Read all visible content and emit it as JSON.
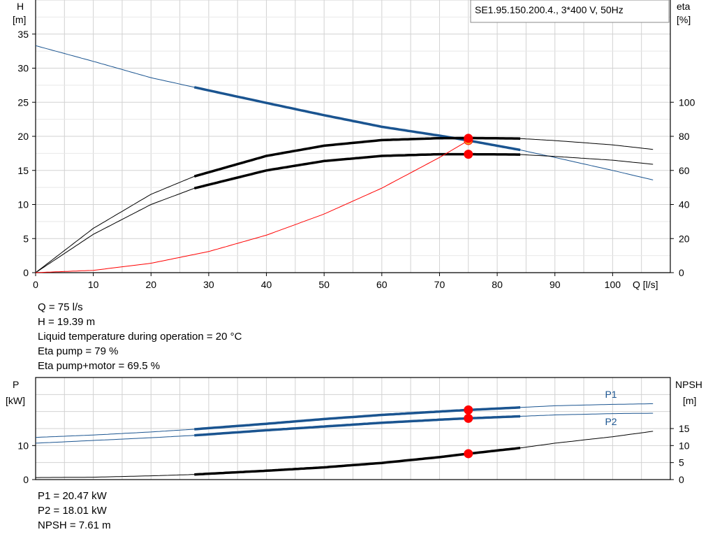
{
  "title": "SE1.95.150.200.4., 3*400 V, 50Hz",
  "colors": {
    "blue": "#1a5490",
    "black": "#000000",
    "red": "#ff0000",
    "grid": "#d2d2d2",
    "orange": "#f5a623"
  },
  "chart_data": [
    {
      "type": "line",
      "name": "pump-curve",
      "xlabel": "Q [l/s]",
      "ylabel_left": [
        "H",
        "[m]"
      ],
      "ylabel_right": [
        "eta",
        "[%]"
      ],
      "xlim": [
        0,
        110
      ],
      "ylim_left": [
        0,
        40
      ],
      "ylim_right": [
        0,
        160
      ],
      "x_ticks": [
        0,
        10,
        20,
        30,
        40,
        50,
        60,
        70,
        80,
        90,
        100
      ],
      "y_ticks_left": [
        0,
        5,
        10,
        15,
        20,
        25,
        30,
        35
      ],
      "y_ticks_right": [
        0,
        20,
        40,
        60,
        80,
        100
      ],
      "grid": true,
      "series": [
        {
          "key": "H",
          "axis": "left",
          "color": "#1a5490",
          "x": [
            0,
            10,
            20,
            27.5,
            40,
            50,
            60,
            70,
            75,
            84,
            90,
            100,
            107
          ],
          "y": [
            33.3,
            31.0,
            28.6,
            27.2,
            24.9,
            23.1,
            21.4,
            20.1,
            19.39,
            18.0,
            16.9,
            15.0,
            13.6
          ],
          "bold_range": [
            27.5,
            84
          ]
        },
        {
          "key": "eta_pump",
          "axis": "right",
          "color": "#000000",
          "x": [
            0,
            10,
            20,
            27.5,
            40,
            50,
            60,
            70,
            75,
            84,
            90,
            100,
            107
          ],
          "y": [
            0,
            26,
            46,
            56.5,
            68.5,
            74.5,
            77.8,
            78.9,
            79.0,
            78.7,
            77.5,
            75,
            72.3
          ],
          "bold_range": [
            27.5,
            84
          ]
        },
        {
          "key": "eta_pump_motor",
          "axis": "right",
          "color": "#000000",
          "x": [
            0,
            10,
            20,
            27.5,
            40,
            50,
            60,
            70,
            75,
            84,
            90,
            100,
            107
          ],
          "y": [
            0,
            22.5,
            40,
            49.5,
            60,
            65.5,
            68.5,
            69.5,
            69.5,
            69.3,
            68.2,
            66,
            63.6
          ],
          "bold_range": [
            27.5,
            84
          ]
        },
        {
          "key": "system",
          "axis": "left",
          "color": "#ff0000",
          "x": [
            0,
            10,
            20,
            30,
            40,
            50,
            60,
            70,
            75
          ],
          "y": [
            0,
            0.34,
            1.38,
            3.1,
            5.5,
            8.6,
            12.4,
            16.9,
            19.39
          ]
        }
      ],
      "points": [
        {
          "x": 75,
          "y": 19.39,
          "axis": "left",
          "color": "#f5a623"
        },
        {
          "x": 75,
          "y": 19.7,
          "axis": "left",
          "color": "#ff0000"
        },
        {
          "x": 75,
          "y": 69.5,
          "axis": "right",
          "color": "#ff0000"
        }
      ]
    },
    {
      "type": "line",
      "name": "power-curve",
      "ylabel_left": [
        "P",
        "[kW]"
      ],
      "ylabel_right": [
        "NPSH",
        "[m]"
      ],
      "xlim": [
        0,
        110
      ],
      "ylim_left": [
        0,
        30
      ],
      "ylim_right": [
        0,
        30
      ],
      "y_ticks_left": [
        0,
        10
      ],
      "y_ticks_right": [
        0,
        5,
        10,
        15
      ],
      "grid": true,
      "series": [
        {
          "key": "P1",
          "axis": "left",
          "color": "#1a5490",
          "label": "P1",
          "x": [
            0,
            10,
            20,
            27.5,
            40,
            50,
            60,
            70,
            75,
            84,
            90,
            100,
            107
          ],
          "y": [
            12.4,
            13.1,
            14.0,
            14.8,
            16.4,
            17.8,
            19.0,
            20.0,
            20.47,
            21.2,
            21.7,
            22.1,
            22.3
          ],
          "bold_range": [
            27.5,
            84
          ]
        },
        {
          "key": "P2",
          "axis": "left",
          "color": "#1a5490",
          "label": "P2",
          "x": [
            0,
            10,
            20,
            27.5,
            40,
            50,
            60,
            70,
            75,
            84,
            90,
            100,
            107
          ],
          "y": [
            10.7,
            11.5,
            12.3,
            13.0,
            14.5,
            15.6,
            16.7,
            17.6,
            18.01,
            18.6,
            19.0,
            19.4,
            19.5
          ],
          "bold_range": [
            27.5,
            84
          ]
        },
        {
          "key": "NPSH",
          "axis": "right",
          "color": "#000000",
          "x": [
            0,
            10,
            20,
            27.5,
            40,
            50,
            60,
            70,
            75,
            84,
            90,
            100,
            107
          ],
          "y": [
            0.6,
            0.7,
            1.1,
            1.5,
            2.6,
            3.6,
            4.9,
            6.6,
            7.61,
            9.3,
            10.7,
            12.6,
            14.2
          ],
          "bold_range": [
            27.5,
            84
          ]
        }
      ],
      "points": [
        {
          "x": 75,
          "y": 20.47,
          "axis": "left",
          "color": "#ff0000"
        },
        {
          "x": 75,
          "y": 18.01,
          "axis": "left",
          "color": "#ff0000"
        },
        {
          "x": 75,
          "y": 7.61,
          "axis": "right",
          "color": "#ff0000"
        }
      ]
    }
  ],
  "info_top": [
    "Q = 75 l/s",
    "H = 19.39 m",
    "Liquid temperature during operation = 20 °C",
    "Eta pump = 79 %",
    "Eta pump+motor = 69.5 %"
  ],
  "info_bottom": [
    "P1 = 20.47 kW",
    "P2 = 18.01 kW",
    "NPSH = 7.61 m"
  ]
}
